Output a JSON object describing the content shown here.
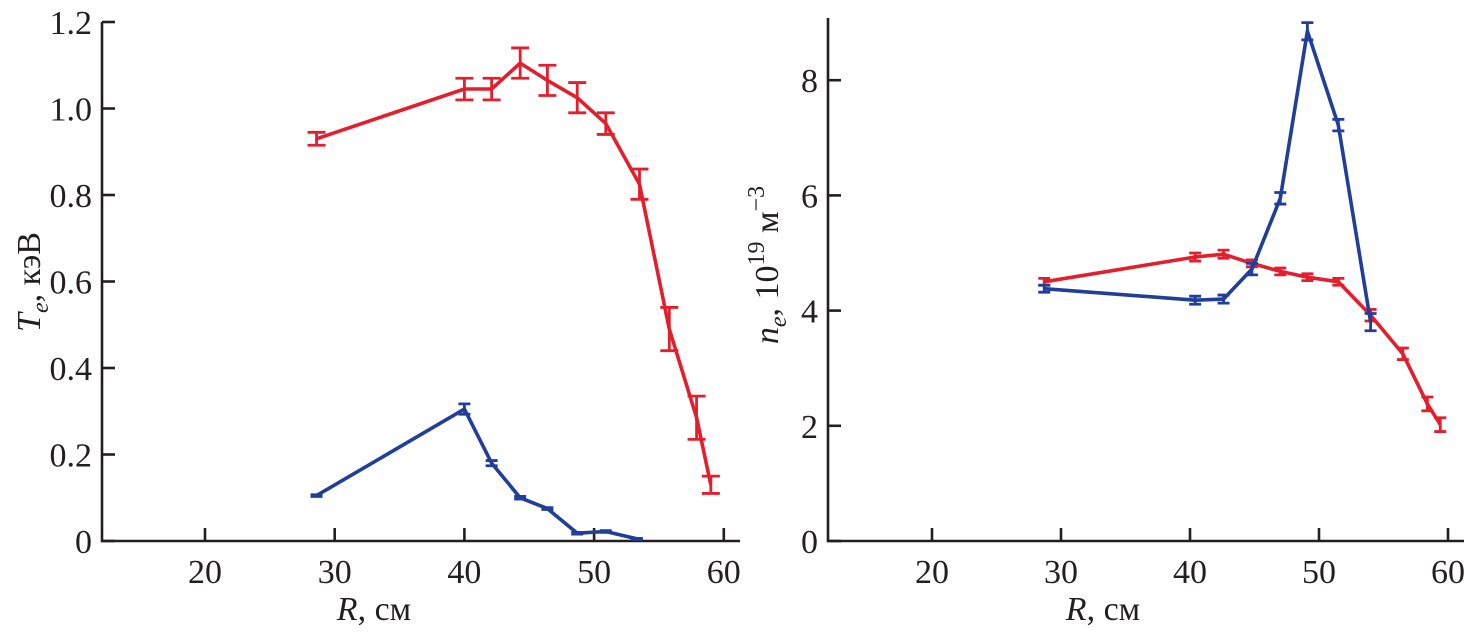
{
  "colors": {
    "red": "#e31e2d",
    "blue": "#213f99",
    "axis": "#231f20"
  },
  "chart_data": [
    {
      "type": "line",
      "title": "",
      "xlabel": {
        "italic": "R",
        "rest": ", см"
      },
      "ylabel": {
        "italic": "T",
        "sub": "e",
        "rest": ", кэВ"
      },
      "xlim": [
        12,
        62
      ],
      "ylim": [
        0,
        1.2
      ],
      "xticks": [
        20,
        30,
        40,
        50,
        60
      ],
      "xtick_labels": [
        "20",
        "30",
        "40",
        "50",
        "60"
      ],
      "yticks": [
        0,
        0.2,
        0.4,
        0.6,
        0.8,
        1.0,
        1.2
      ],
      "ytick_labels": [
        "0",
        "0.2",
        "0.4",
        "0.6",
        "0.8",
        "1.0",
        "1.2"
      ],
      "grid": false,
      "series": [
        {
          "name": "red",
          "color": "#e31e2d",
          "x": [
            28.6,
            40.0,
            42.1,
            44.3,
            46.4,
            48.7,
            50.9,
            53.5,
            55.8,
            57.9,
            59.0
          ],
          "y": [
            0.93,
            1.045,
            1.045,
            1.105,
            1.065,
            1.025,
            0.965,
            0.825,
            0.49,
            0.285,
            0.13
          ],
          "err": [
            0.015,
            0.025,
            0.025,
            0.035,
            0.035,
            0.035,
            0.025,
            0.035,
            0.05,
            0.05,
            0.02
          ]
        },
        {
          "name": "blue",
          "color": "#213f99",
          "x": [
            28.6,
            40.0,
            42.1,
            44.3,
            46.4,
            48.7,
            50.9,
            53.3
          ],
          "y": [
            0.105,
            0.305,
            0.18,
            0.1,
            0.075,
            0.018,
            0.022,
            0.005
          ],
          "err": [
            0.002,
            0.012,
            0.006,
            0.003,
            0.002,
            0.002,
            0.002,
            0.001
          ]
        }
      ]
    },
    {
      "type": "line",
      "title": "",
      "xlabel": {
        "italic": "R",
        "rest": ", см"
      },
      "ylabel": {
        "italic": "n",
        "sub": "e",
        "rest": ", 10",
        "sup": "19",
        "unit": " м",
        "unit_sup": "−3"
      },
      "xlim": [
        12,
        62
      ],
      "ylim": [
        0,
        9
      ],
      "xticks": [
        20,
        30,
        40,
        50,
        60
      ],
      "xtick_labels": [
        "20",
        "30",
        "40",
        "50",
        "60"
      ],
      "yticks": [
        0,
        2,
        4,
        6,
        8
      ],
      "ytick_labels": [
        "0",
        "2",
        "4",
        "6",
        "8"
      ],
      "grid": false,
      "series": [
        {
          "name": "red",
          "color": "#e31e2d",
          "x": [
            28.7,
            40.4,
            42.6,
            44.8,
            47.0,
            49.1,
            51.5,
            54.0,
            56.5,
            58.4,
            59.4
          ],
          "y": [
            4.5,
            4.93,
            4.98,
            4.82,
            4.68,
            4.58,
            4.5,
            3.92,
            3.25,
            2.38,
            2.02
          ],
          "err": [
            0.06,
            0.07,
            0.07,
            0.06,
            0.06,
            0.06,
            0.06,
            0.1,
            0.1,
            0.12,
            0.12
          ]
        },
        {
          "name": "blue",
          "color": "#213f99",
          "x": [
            28.7,
            40.4,
            42.6,
            44.8,
            47.0,
            49.1,
            51.5,
            54.0
          ],
          "y": [
            4.38,
            4.18,
            4.2,
            4.72,
            5.95,
            8.85,
            7.22,
            3.8
          ],
          "err": [
            0.06,
            0.07,
            0.07,
            0.1,
            0.1,
            0.15,
            0.1,
            0.15
          ]
        }
      ]
    }
  ]
}
